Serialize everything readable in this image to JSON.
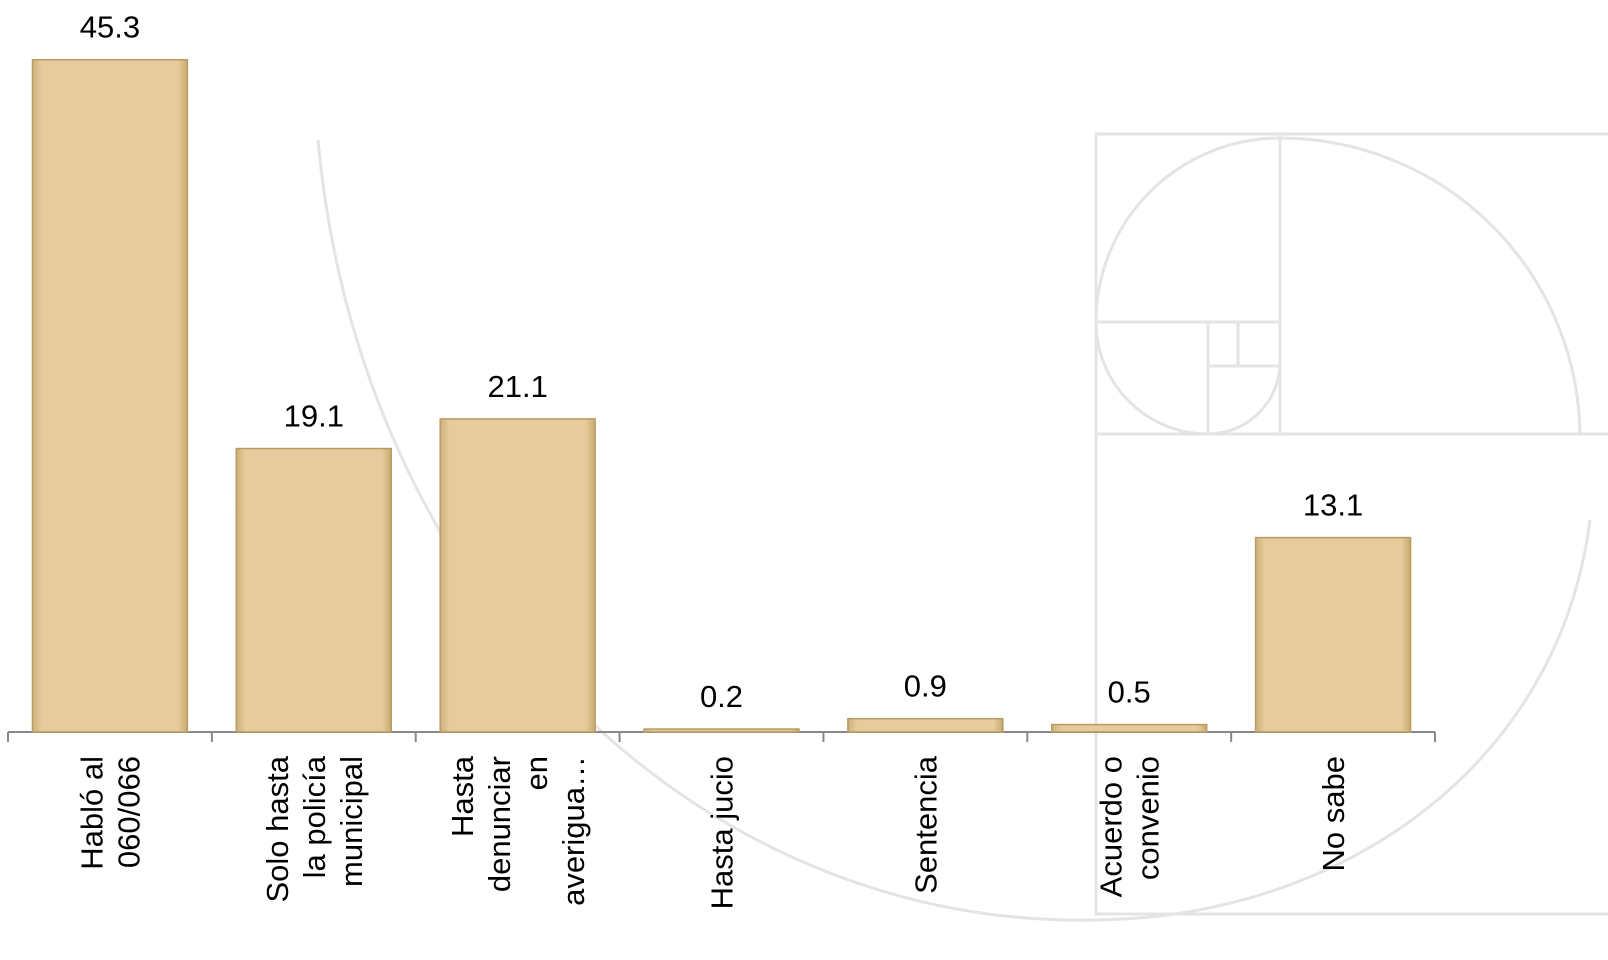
{
  "chart_data": {
    "type": "bar",
    "categories": [
      [
        "Habló al",
        "060/066"
      ],
      [
        "Solo hasta",
        "la policía",
        "municipal"
      ],
      [
        "Hasta",
        "denunciar",
        "en",
        "averigua…"
      ],
      [
        "Hasta jucio"
      ],
      [
        "Sentencia"
      ],
      [
        "Acuerdo o",
        "convenio"
      ],
      [
        "No sabe"
      ]
    ],
    "values": [
      45.3,
      19.1,
      21.1,
      0.2,
      0.9,
      0.5,
      13.1
    ],
    "color": "#e6cc9c",
    "ylim": [
      0,
      50
    ]
  }
}
